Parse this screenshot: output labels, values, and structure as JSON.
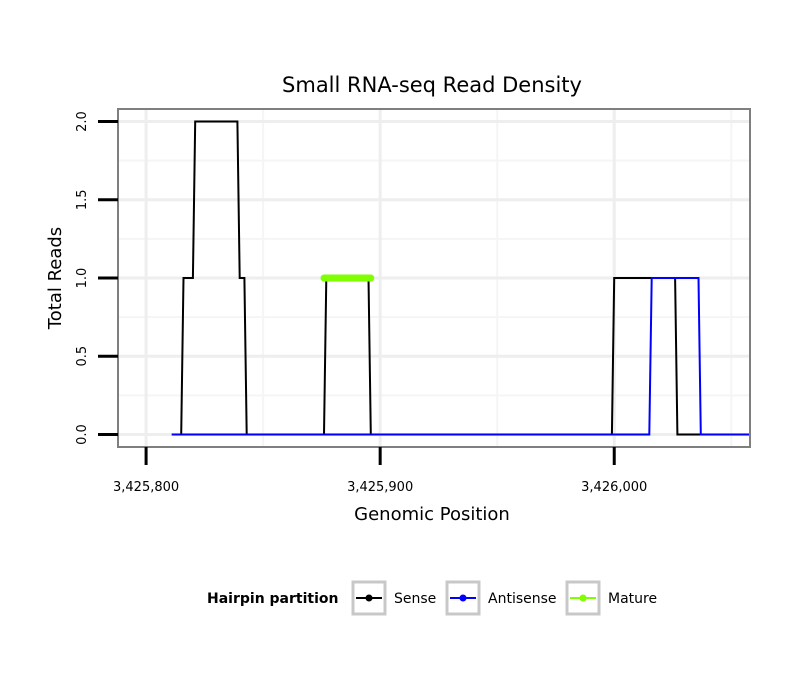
{
  "chart_data": {
    "type": "line",
    "title": "Small RNA-seq Read Density",
    "xlabel": "Genomic Position",
    "ylabel": "Total Reads",
    "xlim": [
      3425788,
      3426058
    ],
    "ylim": [
      -0.08,
      2.08
    ],
    "x_ticks": [
      3425800,
      3425900,
      3426000
    ],
    "x_tick_labels": [
      "3,425,800",
      "3,425,900",
      "3,426,000"
    ],
    "x_grid_minor": [
      3425850,
      3425950,
      3426050
    ],
    "y_ticks": [
      0,
      0.5,
      1,
      1.5,
      2
    ],
    "y_tick_labels": [
      "0.0",
      "0.5",
      "1.0",
      "1.5",
      "2.0"
    ],
    "grid": true,
    "series": [
      {
        "name": "Sense",
        "color": "#000000",
        "x": [
          3425811,
          3425815,
          3425816,
          3425820,
          3425821,
          3425839,
          3425840,
          3425842,
          3425843,
          3425876,
          3425877,
          3425895,
          3425896,
          3425999,
          3426000,
          3426026,
          3426027,
          3426058
        ],
        "y": [
          0,
          0,
          1,
          1,
          2,
          2,
          1,
          1,
          0,
          0,
          1,
          1,
          0,
          0,
          1,
          1,
          0,
          0
        ]
      },
      {
        "name": "Antisense",
        "color": "#0000ff",
        "x": [
          3425811,
          3426015,
          3426016,
          3426036,
          3426037,
          3426058
        ],
        "y": [
          0,
          0,
          1,
          1,
          0,
          0
        ]
      },
      {
        "name": "Mature",
        "color": "#7fff00",
        "x": [
          3425876,
          3425896
        ],
        "y": [
          1,
          1
        ]
      }
    ],
    "legend": {
      "title": "Hairpin partition",
      "position": "bottom",
      "entries": [
        "Sense",
        "Antisense",
        "Mature"
      ]
    }
  }
}
